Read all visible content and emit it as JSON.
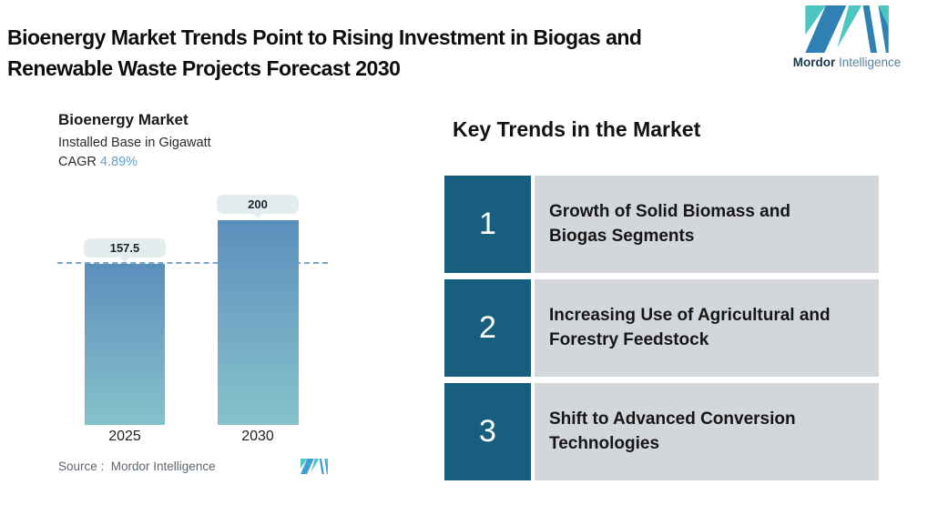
{
  "header": {
    "title": "Bioenergy Market Trends Point to Rising Investment in Biogas and\nRenewable Waste Projects Forecast 2030",
    "brand": {
      "name_bold": "Mordor",
      "name_light": " Intelligence"
    }
  },
  "chart": {
    "title": "Bioenergy Market",
    "subtitle": "Installed Base in Gigawatt",
    "cagr_label": "CAGR ",
    "cagr_value": "4.89%",
    "source_label": "Source :  Mordor Intelligence"
  },
  "chart_data": {
    "type": "bar",
    "title": "Bioenergy Market",
    "subtitle": "Installed Base in Gigawatt",
    "unit": "Gigawatt",
    "cagr_percent": 4.89,
    "categories": [
      "2025",
      "2030"
    ],
    "values": [
      157.5,
      200
    ],
    "value_labels": [
      "157.5",
      "200"
    ],
    "ylim": [
      0,
      200
    ],
    "grid": false,
    "annotations": [
      "dashed reference line at 157.5"
    ],
    "bar_gradient_top": "#5a8fbc",
    "bar_gradient_bottom": "#85c2cb"
  },
  "trends": {
    "heading": "Key Trends in the Market",
    "items": [
      {
        "number": "1",
        "text": "Growth of Solid Biomass and\nBiogas Segments"
      },
      {
        "number": "2",
        "text": "Increasing Use of Agricultural and\nForestry Feedstock"
      },
      {
        "number": "3",
        "text": "Shift to Advanced Conversion\nTechnologies"
      }
    ]
  },
  "colors": {
    "accent_teal": "#4ec6c0",
    "accent_blue": "#2f80b3",
    "number_box": "#185f7f",
    "panel_gray": "#d3d7db",
    "cagr_blue": "#66a0ce",
    "dashed_line": "#7ca5c4",
    "pill_bg": "#e4ecef"
  }
}
